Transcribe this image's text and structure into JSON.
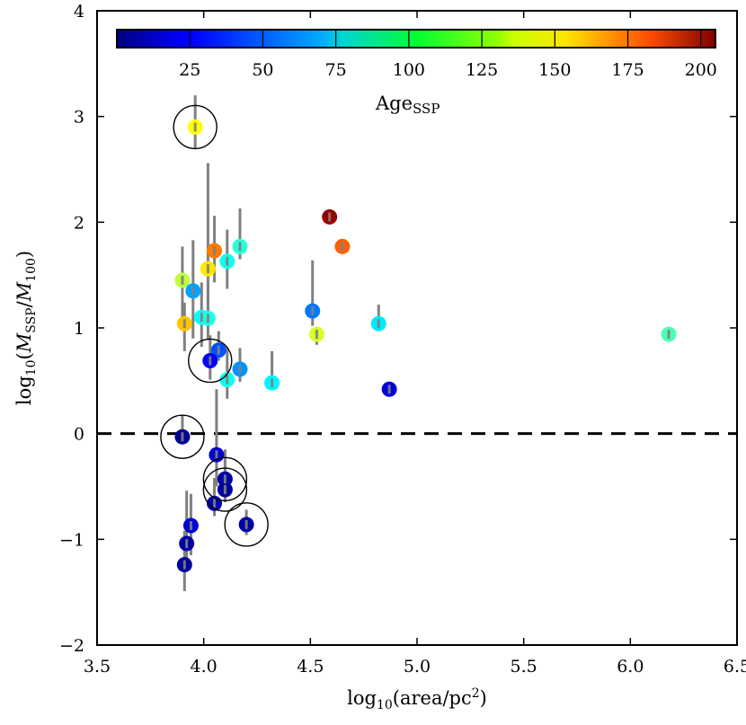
{
  "chart_data": {
    "type": "scatter",
    "title": "",
    "xlabel": "log10(area/pc^2)",
    "ylabel": "log10(M_SSP/M_100)",
    "xlim": [
      3.5,
      6.5
    ],
    "ylim": [
      -2,
      4
    ],
    "xticks": [
      3.5,
      4.0,
      4.5,
      5.0,
      5.5,
      6.0,
      6.5
    ],
    "xtick_labels": [
      "3.5",
      "4.0",
      "4.5",
      "5.0",
      "5.5",
      "6.0",
      "6.5"
    ],
    "yticks": [
      -2,
      -1,
      0,
      1,
      2,
      3,
      4
    ],
    "ytick_labels": [
      "−2",
      "−1",
      "0",
      "1",
      "2",
      "3",
      "4"
    ],
    "reference_line": {
      "y": 0,
      "style": "dashed"
    },
    "colorbar": {
      "label": "Age_SSP",
      "range": [
        0,
        205
      ],
      "ticks": [
        25,
        50,
        75,
        100,
        125,
        150,
        175,
        200
      ],
      "tick_labels": [
        "25",
        "50",
        "75",
        "100",
        "125",
        "150",
        "175",
        "200"
      ],
      "colormap": "jet",
      "placement": "top-inside"
    },
    "points": [
      {
        "x": 3.96,
        "y": 2.9,
        "yerr_low": 0.2,
        "yerr_high": 0.3,
        "age": 128,
        "circled": true
      },
      {
        "x": 4.59,
        "y": 2.05,
        "yerr_low": 0.04,
        "yerr_high": 0.04,
        "age": 200,
        "circled": false
      },
      {
        "x": 4.65,
        "y": 1.77,
        "yerr_low": 0.06,
        "yerr_high": 0.07,
        "age": 160,
        "circled": false
      },
      {
        "x": 4.05,
        "y": 1.73,
        "yerr_low": 0.3,
        "yerr_high": 0.33,
        "age": 155,
        "circled": false
      },
      {
        "x": 4.17,
        "y": 1.77,
        "yerr_low": 0.12,
        "yerr_high": 0.36,
        "age": 85,
        "circled": false
      },
      {
        "x": 4.11,
        "y": 1.63,
        "yerr_low": 0.26,
        "yerr_high": 0.3,
        "age": 80,
        "circled": false
      },
      {
        "x": 4.02,
        "y": 1.56,
        "yerr_low": 0.45,
        "yerr_high": 1.0,
        "age": 133,
        "circled": false
      },
      {
        "x": 3.9,
        "y": 1.45,
        "yerr_low": 0.37,
        "yerr_high": 0.32,
        "age": 115,
        "circled": false
      },
      {
        "x": 3.95,
        "y": 1.35,
        "yerr_low": 0.45,
        "yerr_high": 0.48,
        "age": 58,
        "circled": false
      },
      {
        "x": 3.99,
        "y": 1.1,
        "yerr_low": 0.28,
        "yerr_high": 0.33,
        "age": 78,
        "circled": false
      },
      {
        "x": 4.02,
        "y": 1.09,
        "yerr_low": 0.2,
        "yerr_high": 0.35,
        "age": 82,
        "circled": false
      },
      {
        "x": 3.91,
        "y": 1.04,
        "yerr_low": 0.26,
        "yerr_high": 0.2,
        "age": 140,
        "circled": false
      },
      {
        "x": 4.51,
        "y": 1.16,
        "yerr_low": 0.14,
        "yerr_high": 0.48,
        "age": 50,
        "circled": false
      },
      {
        "x": 4.53,
        "y": 0.94,
        "yerr_low": 0.1,
        "yerr_high": 0.05,
        "age": 120,
        "circled": false
      },
      {
        "x": 4.82,
        "y": 1.04,
        "yerr_low": 0.05,
        "yerr_high": 0.18,
        "age": 72,
        "circled": false
      },
      {
        "x": 6.18,
        "y": 0.94,
        "yerr_low": 0.02,
        "yerr_high": 0.04,
        "age": 92,
        "circled": false
      },
      {
        "x": 4.07,
        "y": 0.79,
        "yerr_low": 0.1,
        "yerr_high": 0.18,
        "age": 42,
        "circled": false
      },
      {
        "x": 4.03,
        "y": 0.69,
        "yerr_low": 0.18,
        "yerr_high": 0.24,
        "age": 25,
        "circled": true
      },
      {
        "x": 4.17,
        "y": 0.61,
        "yerr_low": 0.12,
        "yerr_high": 0.2,
        "age": 55,
        "circled": false
      },
      {
        "x": 4.11,
        "y": 0.51,
        "yerr_low": 0.18,
        "yerr_high": 0.3,
        "age": 80,
        "circled": false
      },
      {
        "x": 4.32,
        "y": 0.48,
        "yerr_low": 0.07,
        "yerr_high": 0.3,
        "age": 75,
        "circled": false
      },
      {
        "x": 4.87,
        "y": 0.42,
        "yerr_low": 0.02,
        "yerr_high": 0.03,
        "age": 18,
        "circled": false
      },
      {
        "x": 3.9,
        "y": -0.03,
        "yerr_low": 0.05,
        "yerr_high": 0.2,
        "age": 4,
        "circled": true
      },
      {
        "x": 4.06,
        "y": -0.2,
        "yerr_low": 0.3,
        "yerr_high": 0.62,
        "age": 16,
        "circled": false
      },
      {
        "x": 4.1,
        "y": -0.43,
        "yerr_low": 0.12,
        "yerr_high": 0.28,
        "age": 8,
        "circled": true
      },
      {
        "x": 4.1,
        "y": -0.53,
        "yerr_low": 0.12,
        "yerr_high": 0.28,
        "age": 6,
        "circled": true
      },
      {
        "x": 4.05,
        "y": -0.66,
        "yerr_low": 0.12,
        "yerr_high": 0.24,
        "age": 10,
        "circled": false
      },
      {
        "x": 4.2,
        "y": -0.86,
        "yerr_low": 0.1,
        "yerr_high": 0.14,
        "age": 8,
        "circled": true
      },
      {
        "x": 3.94,
        "y": -0.87,
        "yerr_low": 0.28,
        "yerr_high": 0.3,
        "age": 18,
        "circled": false
      },
      {
        "x": 3.92,
        "y": -1.04,
        "yerr_low": 0.17,
        "yerr_high": 0.5,
        "age": 8,
        "circled": false
      },
      {
        "x": 3.91,
        "y": -1.24,
        "yerr_low": 0.25,
        "yerr_high": 0.32,
        "age": 6,
        "circled": false
      }
    ]
  }
}
